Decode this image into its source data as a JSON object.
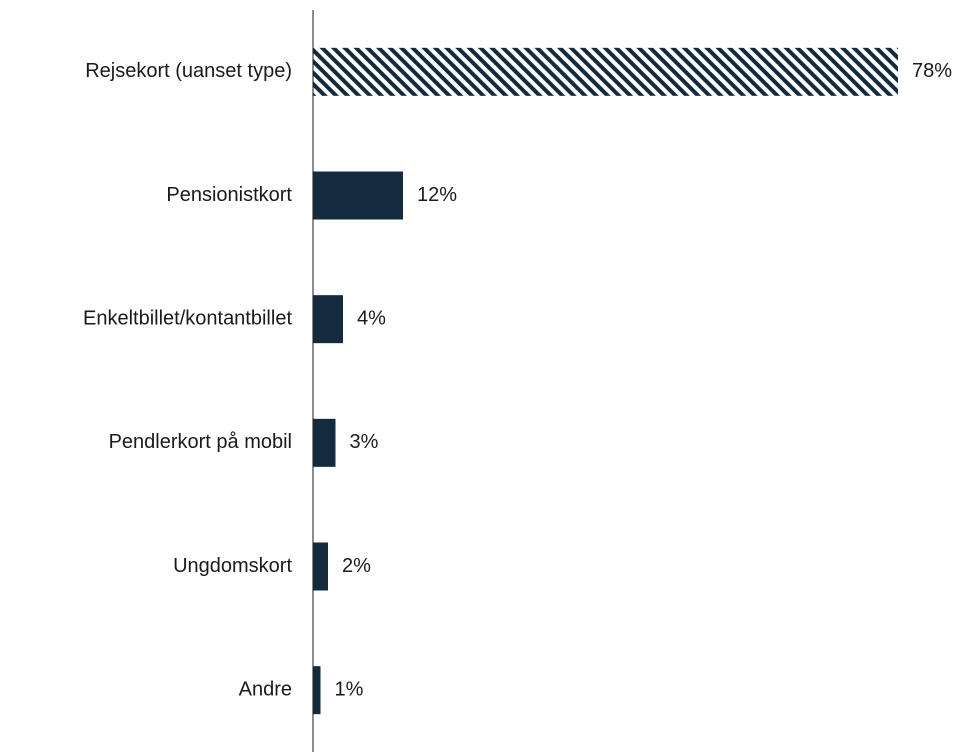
{
  "chart_data": {
    "type": "hbar",
    "categories": [
      "Rejsekort (uanset type)",
      "Pensionistkort",
      "Enkeltbillet/kontantbillet",
      "Pendlerkort på mobil",
      "Ungdomskort",
      "Andre"
    ],
    "values": [
      78,
      12,
      4,
      3,
      2,
      1
    ],
    "value_labels": [
      "78%",
      "12%",
      "4%",
      "3%",
      "2%",
      "1%"
    ],
    "hatch": [
      true,
      false,
      false,
      false,
      false,
      false
    ],
    "color": "#142a3e",
    "xlim": [
      0,
      80
    ]
  }
}
